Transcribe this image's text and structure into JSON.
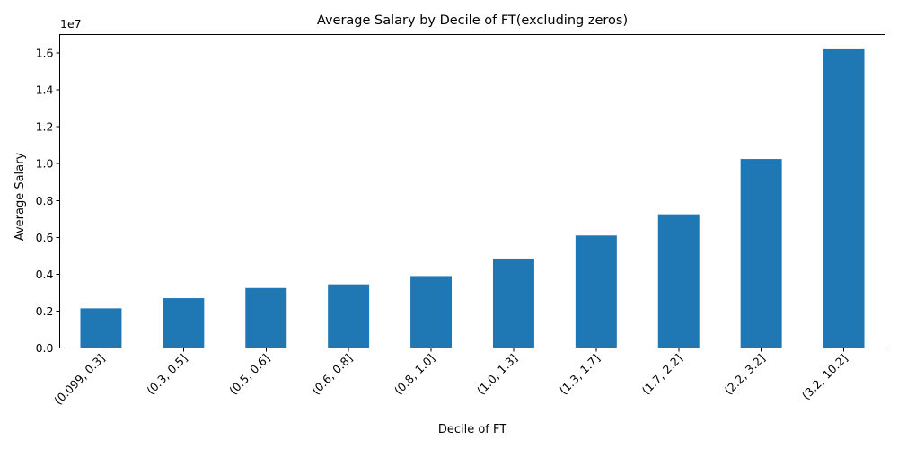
{
  "chart_data": {
    "type": "bar",
    "title": "Average Salary by Decile of FT(excluding zeros)",
    "xlabel": "Decile of FT",
    "ylabel": "Average Salary",
    "y_offset_label": "1e7",
    "categories": [
      "(0.099, 0.3]",
      "(0.3, 0.5]",
      "(0.5, 0.6]",
      "(0.6, 0.8]",
      "(0.8, 1.0]",
      "(1.0, 1.3]",
      "(1.3, 1.7]",
      "(1.7, 2.2]",
      "(2.2, 3.2]",
      "(3.2, 10.2]"
    ],
    "values": [
      2150000,
      2700000,
      3250000,
      3450000,
      3900000,
      4850000,
      6100000,
      7250000,
      10250000,
      16200000
    ],
    "yticks": [
      0,
      0.2,
      0.4,
      0.6,
      0.8,
      1.0,
      1.2,
      1.4,
      1.6
    ],
    "ytick_labels": [
      "0.0",
      "0.2",
      "0.4",
      "0.6",
      "0.8",
      "1.0",
      "1.2",
      "1.4",
      "1.6"
    ],
    "ytick_scale": 10000000,
    "ylim": [
      0,
      17000000
    ],
    "bar_color": "#1f77b4",
    "grid": false,
    "legend": "none",
    "xtick_rotation_deg": 45
  }
}
